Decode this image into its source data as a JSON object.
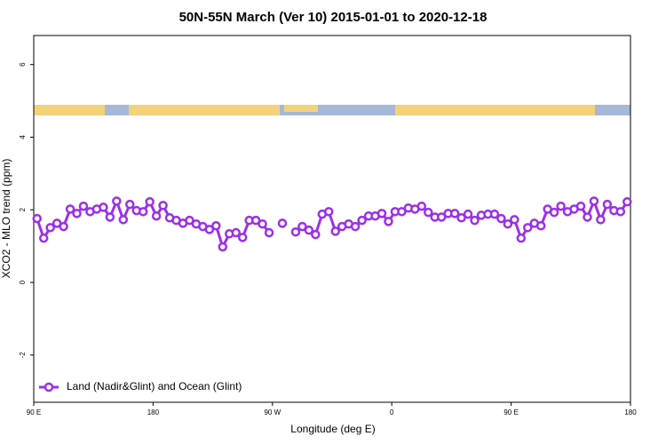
{
  "chart_data": {
    "type": "line",
    "title": "50N-55N March (Ver 10)   2015-01-01 to 2020-12-18",
    "xlabel": "Longitude (deg E)",
    "ylabel": "XCO2 - MLO trend (ppm)",
    "xlim": [
      90,
      540
    ],
    "xticks": [
      {
        "value": 90,
        "label": "90 E"
      },
      180,
      {
        "value": 270,
        "label": "90 W"
      },
      {
        "value": 360,
        "label": "0"
      },
      {
        "value": 450,
        "label": "90 E"
      },
      {
        "value": 540,
        "label": "180"
      }
    ],
    "ylim": [
      -3.3,
      6.8
    ],
    "yticks": [
      -2,
      0,
      2,
      4,
      6
    ],
    "legend": "bottom-left",
    "x": [
      92.5,
      97.5,
      102.5,
      107.5,
      112.5,
      117.5,
      122.5,
      127.5,
      132.5,
      137.5,
      142.5,
      147.5,
      152.5,
      157.5,
      162.5,
      167.5,
      172.5,
      177.5,
      182.5,
      187.5,
      192.5,
      197.5,
      202.5,
      207.5,
      212.5,
      217.5,
      222.5,
      227.5,
      232.5,
      237.5,
      242.5,
      247.5,
      252.5,
      257.5,
      262.5,
      267.5,
      272.5,
      277.5,
      282.5,
      287.5,
      292.5,
      297.5,
      302.5,
      307.5,
      312.5,
      317.5,
      322.5,
      327.5,
      332.5,
      337.5,
      342.5,
      347.5,
      352.5,
      357.5,
      362.5,
      367.5,
      372.5,
      377.5,
      382.5,
      387.5,
      392.5,
      397.5,
      402.5,
      407.5,
      412.5,
      417.5,
      422.5,
      427.5,
      432.5,
      437.5,
      442.5,
      447.5,
      452.5,
      457.5,
      462.5,
      467.5,
      472.5,
      477.5,
      482.5,
      487.5,
      492.5,
      497.5,
      502.5,
      507.5,
      512.5,
      517.5,
      522.5,
      527.5,
      532.5,
      537.5
    ],
    "series": [
      {
        "name": "Land (Nadir&Glint) and Ocean (Glint)",
        "color": "#9b30e8",
        "values": [
          1.76,
          1.22,
          1.51,
          1.63,
          1.54,
          2.02,
          1.9,
          2.1,
          1.95,
          2.02,
          2.07,
          1.8,
          2.24,
          1.73,
          2.15,
          1.98,
          1.95,
          2.22,
          1.83,
          2.12,
          1.78,
          1.71,
          1.63,
          1.71,
          1.61,
          1.54,
          1.46,
          1.56,
          0.98,
          1.34,
          1.37,
          1.24,
          1.71,
          1.71,
          1.61,
          1.37,
          null,
          1.63,
          null,
          1.39,
          1.54,
          1.44,
          1.32,
          1.88,
          1.95,
          1.41,
          1.54,
          1.61,
          1.54,
          1.71,
          1.83,
          1.83,
          1.9,
          1.68,
          1.95,
          1.95,
          2.05,
          2.02,
          2.1,
          1.93,
          1.8,
          1.8,
          1.9,
          1.9,
          1.78,
          1.88,
          1.71,
          1.85,
          1.88,
          1.88,
          1.76,
          1.61,
          1.73,
          1.22,
          1.51,
          1.63,
          1.56,
          2.02,
          1.93,
          2.1,
          1.95,
          2.02,
          2.1,
          1.8,
          2.24,
          1.73,
          2.15,
          1.98,
          1.95,
          2.22
        ]
      }
    ]
  }
}
